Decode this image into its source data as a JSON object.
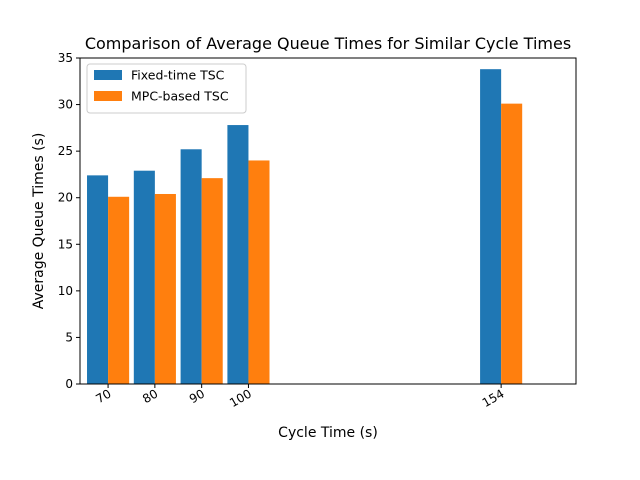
{
  "chart_data": {
    "type": "bar",
    "title": "Comparison of Average Queue Times for Similar Cycle Times",
    "xlabel": "Cycle Time (s)",
    "ylabel": "Average Queue Times (s)",
    "categories": [
      70,
      80,
      90,
      100,
      154
    ],
    "x_tick_labels": [
      "70",
      "80",
      "90",
      "100",
      "154"
    ],
    "xlim": [
      64,
      170
    ],
    "ylim": [
      0,
      35
    ],
    "yticks": [
      0,
      5,
      10,
      15,
      20,
      25,
      30,
      35
    ],
    "bar_width": 4.5,
    "series": [
      {
        "name": "Fixed-time TSC",
        "color": "#1f77b4",
        "values": [
          22.4,
          22.9,
          25.2,
          27.8,
          33.8
        ]
      },
      {
        "name": "MPC-based TSC",
        "color": "#ff7f0e",
        "values": [
          20.1,
          20.4,
          22.1,
          24.0,
          30.1
        ]
      }
    ],
    "legend": "top-left",
    "grid": false
  }
}
